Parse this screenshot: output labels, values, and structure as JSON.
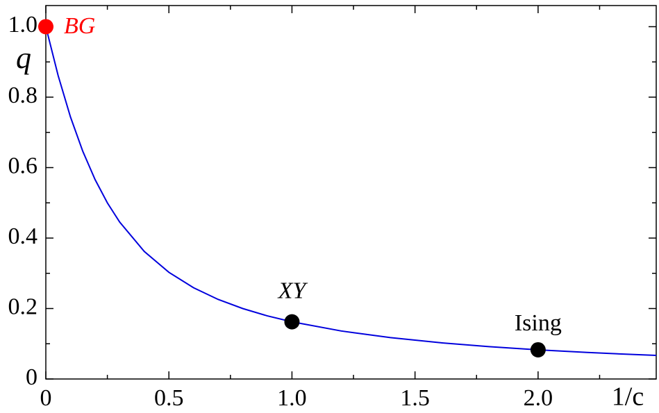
{
  "chart_data": {
    "type": "line",
    "x_label": "1/c",
    "y_label": "q",
    "x": [
      0,
      0.05,
      0.1,
      0.15,
      0.2,
      0.25,
      0.3,
      0.4,
      0.5,
      0.6,
      0.7,
      0.8,
      0.9,
      1.0,
      1.2,
      1.4,
      1.6,
      1.8,
      2.0,
      2.2,
      2.4,
      2.48
    ],
    "series": [
      {
        "color": "#0000dd",
        "values": [
          1,
          0.8612,
          0.744,
          0.6466,
          0.5662,
          0.5,
          0.4454,
          0.362,
          0.3028,
          0.2591,
          0.2259,
          0.2,
          0.1792,
          0.1623,
          0.1363,
          0.1174,
          0.1031,
          0.0918,
          0.0828,
          0.0753,
          0.0691,
          0.0669
        ]
      }
    ],
    "points": [
      {
        "label": "BG",
        "x": 0,
        "y": 1,
        "color": "#ff0000"
      },
      {
        "label": "XY",
        "x": 1,
        "y": 0.1623,
        "color": "#000000"
      },
      {
        "label": "Ising",
        "x": 2,
        "y": 0.0828,
        "color": "#000000"
      }
    ],
    "xlim": [
      0,
      2.48
    ],
    "ylim": [
      0,
      1.06
    ],
    "xticks": [
      0,
      0.5,
      {
        "value": 1,
        "label": "1.0"
      },
      1.5,
      {
        "value": 2,
        "label": "2.0"
      }
    ],
    "yticks": [
      0,
      0.2,
      0.4,
      0.6,
      0.8,
      {
        "value": 1,
        "label": "1.0"
      }
    ],
    "xminorticks": [
      0.25,
      0.75,
      1.25,
      1.75,
      2.25
    ],
    "yminorticks": [
      0.1,
      0.3,
      0.5,
      0.7,
      0.9
    ]
  }
}
